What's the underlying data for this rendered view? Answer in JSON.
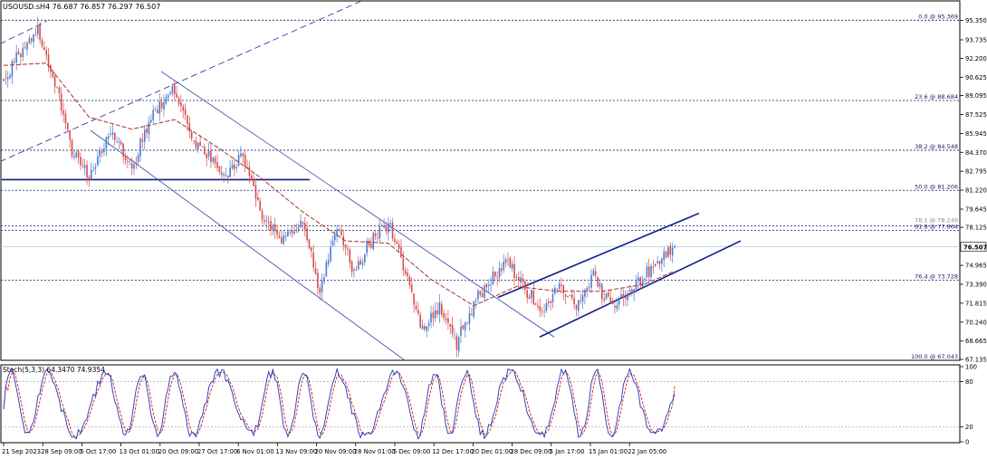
{
  "header": {
    "symbol_info": "USOUSD.sH4  76.687 76.857 76.297 76.507",
    "stoch_info": "Stoch(5,3,3) 64.3470 74.9354"
  },
  "chart_data": {
    "type": "candlestick",
    "symbol": "USOUSD.s",
    "timeframe": "H4",
    "ohlc_readout": {
      "open": 76.687,
      "high": 76.857,
      "low": 76.297,
      "close": 76.507
    },
    "current_price": 76.507,
    "ylim": [
      67.135,
      96.9
    ],
    "y_ticks": [
      95.35,
      93.735,
      92.2,
      90.625,
      89.095,
      87.525,
      85.945,
      84.37,
      82.795,
      81.22,
      79.645,
      78.125,
      74.965,
      73.39,
      71.815,
      70.24,
      68.665,
      67.135
    ],
    "x_tick_labels": [
      "21 Sep 2023",
      "28 Sep 09:00",
      "5 Oct 17:00",
      "13 Oct 01:00",
      "20 Oct 09:00",
      "27 Oct 17:00",
      "6 Nov 01:00",
      "13 Nov 09:00",
      "20 Nov 09:00",
      "28 Nov 01:00",
      "5 Dec 09:00",
      "12 Dec 17:00",
      "20 Dec 01:00",
      "28 Dec 09:00",
      "5 Jan 17:00",
      "15 Jan 01:00",
      "22 Jan 05:00"
    ],
    "fibonacci_levels": [
      {
        "label": "0.0 @ 95.369",
        "value": 95.369
      },
      {
        "label": "23.6 @ 88.684",
        "value": 88.684
      },
      {
        "label": "38.2 @ 84.548",
        "value": 84.548
      },
      {
        "label": "50.0 @ 81.206",
        "value": 81.206
      },
      {
        "label": "78.1 @ 78.249",
        "value": 78.249
      },
      {
        "label": "61.8 @ 77.864",
        "value": 77.864
      },
      {
        "label": "76.4 @ 73.728",
        "value": 73.728
      },
      {
        "label": "100.0 @ 67.043",
        "value": 67.043
      }
    ],
    "horizontal_support": 82.1,
    "key_points": [
      {
        "x": 0,
        "y": 90.2
      },
      {
        "x": 10,
        "y": 93.2
      },
      {
        "x": 16,
        "y": 94.6
      },
      {
        "x": 24,
        "y": 90.2
      },
      {
        "x": 32,
        "y": 84.5
      },
      {
        "x": 40,
        "y": 82.3
      },
      {
        "x": 50,
        "y": 86.3
      },
      {
        "x": 60,
        "y": 83.2
      },
      {
        "x": 70,
        "y": 87.8
      },
      {
        "x": 80,
        "y": 89.6
      },
      {
        "x": 88,
        "y": 85.7
      },
      {
        "x": 96,
        "y": 84.2
      },
      {
        "x": 104,
        "y": 82.3
      },
      {
        "x": 112,
        "y": 84.0
      },
      {
        "x": 120,
        "y": 79.3
      },
      {
        "x": 130,
        "y": 77.2
      },
      {
        "x": 140,
        "y": 78.6
      },
      {
        "x": 148,
        "y": 73.0
      },
      {
        "x": 156,
        "y": 77.9
      },
      {
        "x": 164,
        "y": 74.6
      },
      {
        "x": 172,
        "y": 77.0
      },
      {
        "x": 180,
        "y": 78.6
      },
      {
        "x": 188,
        "y": 74.5
      },
      {
        "x": 196,
        "y": 69.4
      },
      {
        "x": 204,
        "y": 71.5
      },
      {
        "x": 212,
        "y": 68.4
      },
      {
        "x": 220,
        "y": 71.8
      },
      {
        "x": 228,
        "y": 73.8
      },
      {
        "x": 236,
        "y": 75.2
      },
      {
        "x": 244,
        "y": 73.0
      },
      {
        "x": 252,
        "y": 71.0
      },
      {
        "x": 260,
        "y": 73.5
      },
      {
        "x": 268,
        "y": 71.5
      },
      {
        "x": 276,
        "y": 74.2
      },
      {
        "x": 284,
        "y": 71.4
      },
      {
        "x": 292,
        "y": 72.6
      },
      {
        "x": 300,
        "y": 74.3
      },
      {
        "x": 308,
        "y": 75.6
      },
      {
        "x": 314,
        "y": 76.5
      }
    ],
    "moving_average": [
      {
        "x": 0,
        "y": 91.6
      },
      {
        "x": 20,
        "y": 91.8
      },
      {
        "x": 40,
        "y": 87.3
      },
      {
        "x": 60,
        "y": 86.3
      },
      {
        "x": 80,
        "y": 87.1
      },
      {
        "x": 100,
        "y": 84.8
      },
      {
        "x": 120,
        "y": 82.3
      },
      {
        "x": 140,
        "y": 79.4
      },
      {
        "x": 160,
        "y": 77.0
      },
      {
        "x": 180,
        "y": 76.8
      },
      {
        "x": 200,
        "y": 73.8
      },
      {
        "x": 220,
        "y": 71.6
      },
      {
        "x": 240,
        "y": 73.2
      },
      {
        "x": 260,
        "y": 72.8
      },
      {
        "x": 280,
        "y": 72.8
      },
      {
        "x": 300,
        "y": 73.4
      },
      {
        "x": 314,
        "y": 74.5
      }
    ],
    "stochastic": {
      "params": "5,3,3",
      "k": 64.347,
      "d": 74.9354,
      "ylim": [
        0,
        100
      ],
      "y_ticks": [
        100,
        80,
        20,
        0
      ]
    },
    "colors": {
      "bull": "#4a7bd0",
      "bear": "#d84b4b",
      "ma": "#a33333",
      "lines": "#101c8c",
      "fib": "#1a1a6e",
      "stoch_k": "#2233bb",
      "stoch_d": "#cc2222"
    }
  }
}
